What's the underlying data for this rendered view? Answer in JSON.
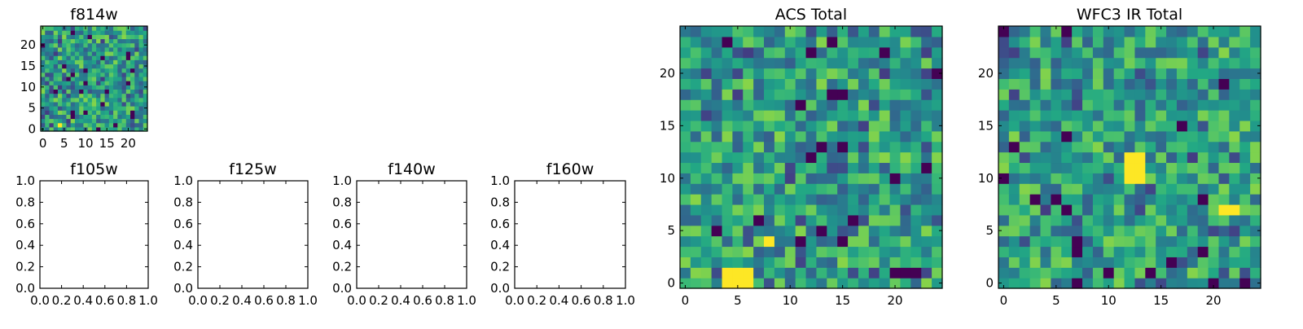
{
  "chart_data": [
    {
      "type": "heatmap",
      "title": "f814w",
      "xlabel": "",
      "ylabel": "",
      "xlim": [
        -0.5,
        24.5
      ],
      "ylim": [
        -0.5,
        24.5
      ],
      "x_ticks": [
        "0",
        "5",
        "10",
        "15",
        "20"
      ],
      "y_ticks": [
        "0",
        "5",
        "10",
        "15",
        "20"
      ],
      "grid_shape": [
        25,
        25
      ],
      "colormap": "viridis",
      "seed": 814,
      "hotspots": [
        [
          4,
          1
        ]
      ]
    },
    {
      "type": "heatmap",
      "title": "f105w",
      "xlabel": "",
      "ylabel": "",
      "xlim": [
        0.0,
        1.0
      ],
      "ylim": [
        0.0,
        1.0
      ],
      "x_ticks": [
        "0.0",
        "0.2",
        "0.4",
        "0.6",
        "0.8",
        "1.0"
      ],
      "y_ticks": [
        "0.0",
        "0.2",
        "0.4",
        "0.6",
        "0.8",
        "1.0"
      ],
      "empty": true
    },
    {
      "type": "heatmap",
      "title": "f125w",
      "xlabel": "",
      "ylabel": "",
      "xlim": [
        0.0,
        1.0
      ],
      "ylim": [
        0.0,
        1.0
      ],
      "x_ticks": [
        "0.0",
        "0.2",
        "0.4",
        "0.6",
        "0.8",
        "1.0"
      ],
      "y_ticks": [
        "0.0",
        "0.2",
        "0.4",
        "0.6",
        "0.8",
        "1.0"
      ],
      "empty": true
    },
    {
      "type": "heatmap",
      "title": "f140w",
      "xlabel": "",
      "ylabel": "",
      "xlim": [
        0.0,
        1.0
      ],
      "ylim": [
        0.0,
        1.0
      ],
      "x_ticks": [
        "0.0",
        "0.2",
        "0.4",
        "0.6",
        "0.8",
        "1.0"
      ],
      "y_ticks": [
        "0.0",
        "0.2",
        "0.4",
        "0.6",
        "0.8",
        "1.0"
      ],
      "empty": true
    },
    {
      "type": "heatmap",
      "title": "f160w",
      "xlabel": "",
      "ylabel": "",
      "xlim": [
        0.0,
        1.0
      ],
      "ylim": [
        0.0,
        1.0
      ],
      "x_ticks": [
        "0.0",
        "0.2",
        "0.4",
        "0.6",
        "0.8",
        "1.0"
      ],
      "y_ticks": [
        "0.0",
        "0.2",
        "0.4",
        "0.6",
        "0.8",
        "1.0"
      ],
      "empty": true
    },
    {
      "type": "heatmap",
      "title": "ACS Total",
      "xlabel": "",
      "ylabel": "",
      "xlim": [
        -0.5,
        24.5
      ],
      "ylim": [
        -0.5,
        24.5
      ],
      "x_ticks": [
        "0",
        "5",
        "10",
        "15",
        "20"
      ],
      "y_ticks": [
        "0",
        "5",
        "10",
        "15",
        "20"
      ],
      "grid_shape": [
        25,
        25
      ],
      "colormap": "viridis",
      "seed": 1234,
      "hotspots": [
        [
          4,
          1
        ],
        [
          5,
          1
        ],
        [
          6,
          1
        ],
        [
          4,
          0
        ],
        [
          5,
          0
        ],
        [
          6,
          0
        ],
        [
          8,
          4
        ]
      ]
    },
    {
      "type": "heatmap",
      "title": "WFC3 IR Total",
      "xlabel": "",
      "ylabel": "",
      "xlim": [
        -0.5,
        24.5
      ],
      "ylim": [
        -0.5,
        24.5
      ],
      "x_ticks": [
        "0",
        "5",
        "10",
        "15",
        "20"
      ],
      "y_ticks": [
        "0",
        "5",
        "10",
        "15",
        "20"
      ],
      "grid_shape": [
        25,
        25
      ],
      "colormap": "viridis",
      "seed": 5678,
      "hotspots": [
        [
          12,
          10
        ],
        [
          12,
          11
        ],
        [
          12,
          12
        ],
        [
          13,
          10
        ],
        [
          13,
          11
        ],
        [
          13,
          12
        ],
        [
          21,
          7
        ],
        [
          22,
          7
        ]
      ]
    }
  ]
}
